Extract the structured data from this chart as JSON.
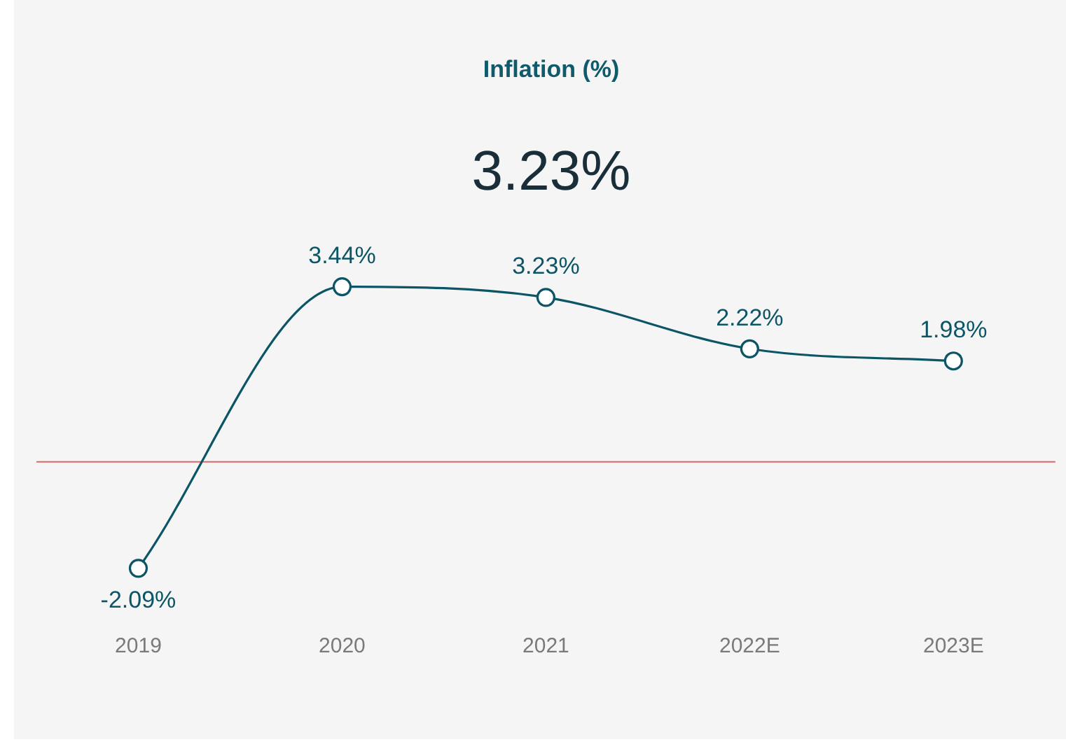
{
  "chart_data": {
    "type": "line",
    "title": "Inflation (%)",
    "subtitle": "3.23%",
    "categories": [
      "2019",
      "2020",
      "2021",
      "2022E",
      "2023E"
    ],
    "series": [
      {
        "color": "#0b5566",
        "values": [
          -2.09,
          3.44,
          3.23,
          2.22,
          1.98
        ],
        "value_labels": [
          "-2.09%",
          "3.44%",
          "3.23%",
          "2.22%",
          "1.98%"
        ]
      }
    ],
    "tick_labels": "x",
    "grid": false,
    "legend": false,
    "marker": "circle",
    "line_style": "solid",
    "ref_lines": [
      {
        "axis": "y",
        "value": 0,
        "color": "#e06666"
      }
    ]
  }
}
